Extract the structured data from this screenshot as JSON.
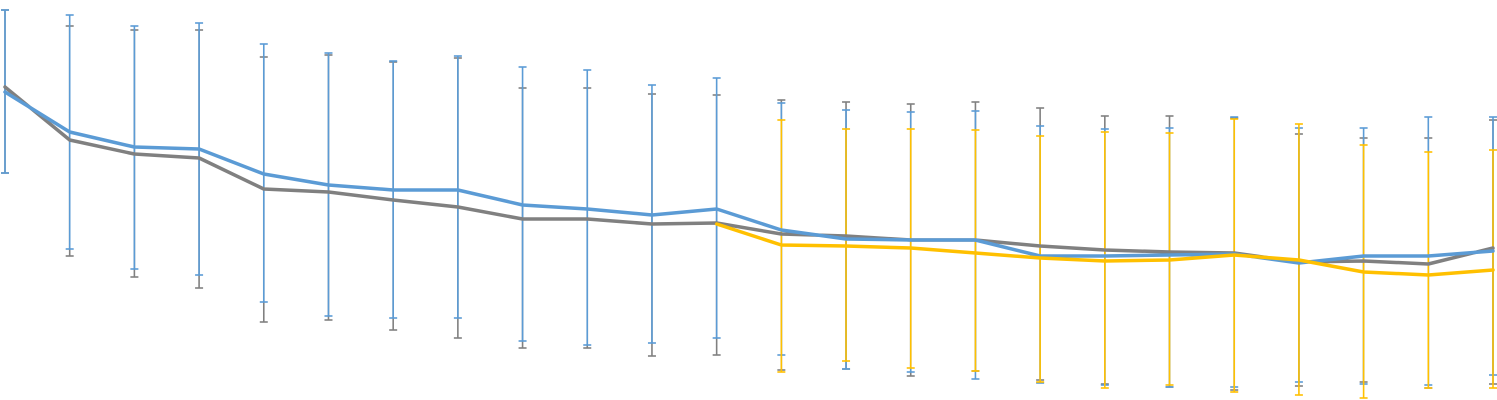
{
  "chart_data": {
    "type": "line",
    "title": "",
    "xlabel": "",
    "ylabel": "",
    "x": [
      1,
      2,
      3,
      4,
      5,
      6,
      7,
      8,
      9,
      10,
      11,
      12,
      13,
      14,
      15,
      16,
      17,
      18,
      19,
      20,
      21,
      22,
      23,
      24
    ],
    "ylim": [
      0,
      400
    ],
    "grid": false,
    "legend": "none",
    "error_bar_cap": true,
    "series": [
      {
        "color": "#808080",
        "values": [
          313,
          260,
          246,
          242,
          211,
          208,
          200,
          193,
          181,
          181,
          176,
          177,
          166,
          164,
          160,
          160,
          154,
          150,
          148,
          147,
          138,
          139,
          136,
          152
        ],
        "err_upper": [
          390,
          374,
          370,
          370,
          343,
          345,
          338,
          342,
          312,
          312,
          306,
          305,
          300,
          298,
          296,
          298,
          292,
          284,
          284,
          282,
          266,
          262,
          262,
          280
        ],
        "err_lower": [
          227,
          144,
          123,
          112,
          78,
          80,
          70,
          62,
          52,
          52,
          44,
          45,
          30,
          31,
          24,
          29,
          20,
          16,
          13,
          10,
          14,
          18,
          12,
          16
        ]
      },
      {
        "color": "#5B9BD5",
        "values": [
          308,
          268,
          253,
          251,
          226,
          215,
          210,
          210,
          195,
          191,
          185,
          191,
          170,
          161,
          160,
          160,
          144,
          144,
          145,
          146,
          137,
          144,
          144,
          149
        ],
        "err_upper": [
          390,
          385,
          374,
          377,
          356,
          347,
          339,
          344,
          333,
          330,
          315,
          322,
          297,
          290,
          288,
          289,
          274,
          271,
          272,
          283,
          272,
          272,
          283,
          283
        ],
        "err_lower": [
          227,
          151,
          131,
          125,
          98,
          84,
          82,
          82,
          59,
          55,
          57,
          62,
          45,
          31,
          28,
          21,
          17,
          15,
          13,
          13,
          18,
          16,
          15,
          25
        ]
      },
      {
        "color": "#FFC000",
        "values": [
          null,
          null,
          null,
          null,
          null,
          null,
          null,
          null,
          null,
          null,
          null,
          176,
          155,
          154,
          152,
          147,
          142,
          139,
          140,
          145,
          140,
          128,
          125,
          130
        ],
        "err_upper": [
          null,
          null,
          null,
          null,
          null,
          null,
          null,
          null,
          null,
          null,
          null,
          176,
          280,
          271,
          271,
          270,
          264,
          268,
          267,
          281,
          276,
          255,
          248,
          250
        ],
        "err_lower": [
          null,
          null,
          null,
          null,
          null,
          null,
          null,
          null,
          null,
          null,
          null,
          176,
          28,
          39,
          32,
          29,
          18,
          12,
          15,
          8,
          5,
          2,
          12,
          12
        ]
      }
    ]
  }
}
